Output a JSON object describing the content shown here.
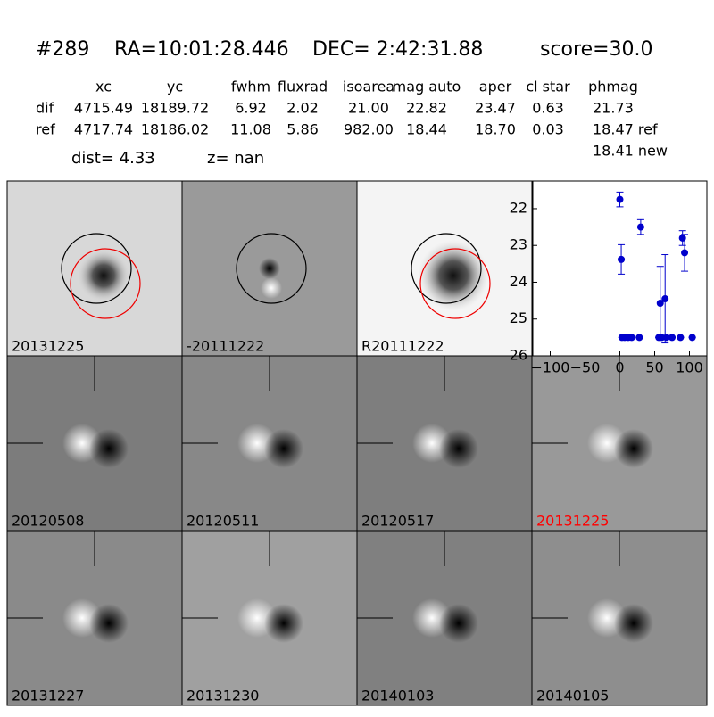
{
  "header": {
    "id": "#289",
    "ra": "RA=10:01:28.446",
    "dec": "DEC= 2:42:31.88",
    "score": "score=30.0"
  },
  "table": {
    "columns": [
      "xc",
      "yc",
      "fwhm",
      "fluxrad",
      "isoarea",
      "mag auto",
      "aper",
      "cl star",
      "phmag"
    ],
    "rows": [
      {
        "label": "dif",
        "cells": [
          "4715.49",
          "18189.72",
          "6.92",
          "2.02",
          "21.00",
          "22.82",
          "23.47",
          "0.63",
          "21.73"
        ]
      },
      {
        "label": "ref",
        "cells": [
          "4717.74",
          "18186.02",
          "11.08",
          "5.86",
          "982.00",
          "18.44",
          "18.70",
          "0.03",
          "18.47 ref"
        ]
      }
    ],
    "extra": "18.41 new"
  },
  "dist": "dist=  4.33",
  "z": "z=   nan",
  "panels": [
    {
      "label": "20131225"
    },
    {
      "label": "-20111222"
    },
    {
      "label": "R20111222"
    },
    {
      "label": "20120508"
    },
    {
      "label": "20120511"
    },
    {
      "label": "20120517"
    },
    {
      "label": "20131225",
      "color": "#ff0000"
    },
    {
      "label": "20131227"
    },
    {
      "label": "20131230"
    },
    {
      "label": "20140103"
    },
    {
      "label": "20140105"
    }
  ],
  "chart_data": {
    "type": "errorbar",
    "color": "#0000cc",
    "xlim": [
      -125,
      125
    ],
    "xticks": [
      {
        "value": -100,
        "label": "−100"
      },
      {
        "value": -50,
        "label": "−50"
      },
      0,
      50,
      100
    ],
    "ylim": [
      26,
      21.25
    ],
    "yticks": [
      22,
      23,
      24,
      25,
      26
    ],
    "x": [
      0,
      2,
      30,
      90,
      93,
      58,
      65,
      3,
      7,
      12,
      17,
      28,
      56,
      60,
      67,
      75,
      87,
      104
    ],
    "values": [
      21.75,
      23.38,
      22.5,
      22.8,
      23.2,
      24.57,
      24.45,
      25.5,
      25.5,
      25.5,
      25.5,
      25.5,
      25.5,
      25.5,
      25.5,
      25.5,
      25.5,
      25.5
    ],
    "errors": [
      0.2,
      0.4,
      0.2,
      0.2,
      0.5,
      1.0,
      1.2,
      0,
      0,
      0,
      0,
      0,
      0,
      0,
      0,
      0,
      0,
      0
    ]
  }
}
